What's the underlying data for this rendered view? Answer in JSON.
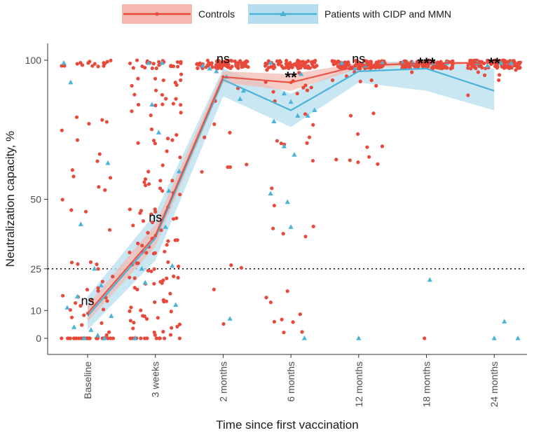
{
  "chart_data": {
    "type": "line",
    "title": "",
    "xlabel": "Time since first vaccination",
    "ylabel": "Neutralization capacity, %",
    "categories": [
      "Baseline",
      "3 weeks",
      "2 months",
      "6 months",
      "12 months",
      "18 months",
      "24 months"
    ],
    "y_ticks": [
      0,
      10,
      25,
      50,
      100
    ],
    "ylim": [
      -6,
      104
    ],
    "threshold": 25,
    "grid": false,
    "legend_position": "top",
    "colors": {
      "controls": "#e8493a",
      "patients": "#4db3d6",
      "controls_band": "#f4b8b0",
      "patients_band": "#b5dfee"
    },
    "series": [
      {
        "name": "Controls",
        "values": [
          9,
          37,
          94,
          92,
          98,
          99,
          99
        ],
        "lower": [
          6,
          33,
          92,
          89,
          97,
          98.5,
          98.5
        ],
        "upper": [
          12,
          41,
          96,
          95,
          99,
          99.5,
          99.5
        ]
      },
      {
        "name": "Patients with CIDP and MMN",
        "values": [
          8,
          36,
          93,
          82,
          96,
          97,
          89
        ],
        "lower": [
          3,
          28,
          87,
          76,
          92,
          89,
          82
        ],
        "upper": [
          15,
          45,
          97,
          88,
          99,
          100,
          97
        ]
      }
    ],
    "annotations": [
      {
        "category": "Baseline",
        "text": "ns",
        "y": 12
      },
      {
        "category": "3 weeks",
        "text": "ns",
        "y": 42
      },
      {
        "category": "2 months",
        "text": "ns",
        "y": 99
      },
      {
        "category": "6 months",
        "text": "**",
        "y": 95
      },
      {
        "category": "12 months",
        "text": "ns",
        "y": 99
      },
      {
        "category": "18 months",
        "text": "***",
        "y": 100
      },
      {
        "category": "24 months",
        "text": "**",
        "y": 100
      }
    ],
    "scatter_patients": [
      {
        "c": 0,
        "d": -0.35,
        "v": 99
      },
      {
        "c": 0,
        "d": -0.25,
        "v": 92
      },
      {
        "c": 0,
        "d": -0.1,
        "v": 41
      },
      {
        "c": 0,
        "d": -0.3,
        "v": 11
      },
      {
        "c": 0,
        "d": -0.2,
        "v": 4
      },
      {
        "c": 0,
        "d": 0.1,
        "v": 25
      },
      {
        "c": 0,
        "d": 0.2,
        "v": 19
      },
      {
        "c": 0,
        "d": 0.3,
        "v": 63
      },
      {
        "c": 0,
        "d": 0.15,
        "v": 1
      },
      {
        "c": 0,
        "d": -0.05,
        "v": 0
      },
      {
        "c": 0,
        "d": 0.25,
        "v": 0
      },
      {
        "c": 0,
        "d": 0.35,
        "v": 8
      },
      {
        "c": 0,
        "d": -0.15,
        "v": 15
      },
      {
        "c": 0,
        "d": 0.05,
        "v": 3
      },
      {
        "c": 1,
        "d": -0.3,
        "v": 0
      },
      {
        "c": 1,
        "d": -0.1,
        "v": 99
      },
      {
        "c": 1,
        "d": 0.1,
        "v": 99
      },
      {
        "c": 1,
        "d": 0.05,
        "v": 74
      },
      {
        "c": 1,
        "d": -0.05,
        "v": 84
      },
      {
        "c": 1,
        "d": 0.2,
        "v": 53
      },
      {
        "c": 1,
        "d": 0.15,
        "v": 40
      },
      {
        "c": 1,
        "d": -0.2,
        "v": 25
      },
      {
        "c": 1,
        "d": 0.25,
        "v": 26
      },
      {
        "c": 1,
        "d": 0.3,
        "v": 12
      },
      {
        "c": 1,
        "d": -0.15,
        "v": 20
      },
      {
        "c": 1,
        "d": 0.35,
        "v": 60
      },
      {
        "c": 2,
        "d": -0.3,
        "v": 98
      },
      {
        "c": 2,
        "d": -0.1,
        "v": 96
      },
      {
        "c": 2,
        "d": 0.05,
        "v": 94
      },
      {
        "c": 2,
        "d": 0.3,
        "v": 89
      },
      {
        "c": 2,
        "d": 0.25,
        "v": 86
      },
      {
        "c": 2,
        "d": 0.1,
        "v": 7
      },
      {
        "c": 2,
        "d": -0.2,
        "v": 97
      },
      {
        "c": 3,
        "d": -0.3,
        "v": 99
      },
      {
        "c": 3,
        "d": -0.1,
        "v": 88
      },
      {
        "c": 3,
        "d": 0.0,
        "v": 85
      },
      {
        "c": 3,
        "d": 0.1,
        "v": 80
      },
      {
        "c": 3,
        "d": -0.25,
        "v": 78
      },
      {
        "c": 3,
        "d": -0.1,
        "v": 69
      },
      {
        "c": 3,
        "d": 0.05,
        "v": 66
      },
      {
        "c": 3,
        "d": -0.3,
        "v": 52
      },
      {
        "c": 3,
        "d": -0.05,
        "v": 49
      },
      {
        "c": 3,
        "d": 0.0,
        "v": 40
      },
      {
        "c": 3,
        "d": 0.25,
        "v": 80
      },
      {
        "c": 3,
        "d": 0.35,
        "v": 82
      },
      {
        "c": 3,
        "d": 0.2,
        "v": 0
      },
      {
        "c": 3,
        "d": 0.15,
        "v": 95
      },
      {
        "c": 4,
        "d": -0.25,
        "v": 99
      },
      {
        "c": 4,
        "d": -0.05,
        "v": 97
      },
      {
        "c": 4,
        "d": 0.1,
        "v": 98
      },
      {
        "c": 4,
        "d": 0.35,
        "v": 99
      },
      {
        "c": 4,
        "d": 0.0,
        "v": 0
      },
      {
        "c": 5,
        "d": -0.35,
        "v": 99
      },
      {
        "c": 5,
        "d": -0.2,
        "v": 99
      },
      {
        "c": 5,
        "d": 0.1,
        "v": 99
      },
      {
        "c": 5,
        "d": 0.3,
        "v": 99
      },
      {
        "c": 5,
        "d": 0.05,
        "v": 21
      },
      {
        "c": 6,
        "d": -0.25,
        "v": 99
      },
      {
        "c": 6,
        "d": -0.1,
        "v": 98
      },
      {
        "c": 6,
        "d": 0.1,
        "v": 99
      },
      {
        "c": 6,
        "d": 0.25,
        "v": 99
      },
      {
        "c": 6,
        "d": 0.0,
        "v": 0
      },
      {
        "c": 6,
        "d": 0.15,
        "v": 6
      },
      {
        "c": 6,
        "d": 0.35,
        "v": 0
      }
    ]
  },
  "legend": {
    "items": [
      {
        "label": "Controls"
      },
      {
        "label": "Patients with CIDP and MMN"
      }
    ]
  }
}
